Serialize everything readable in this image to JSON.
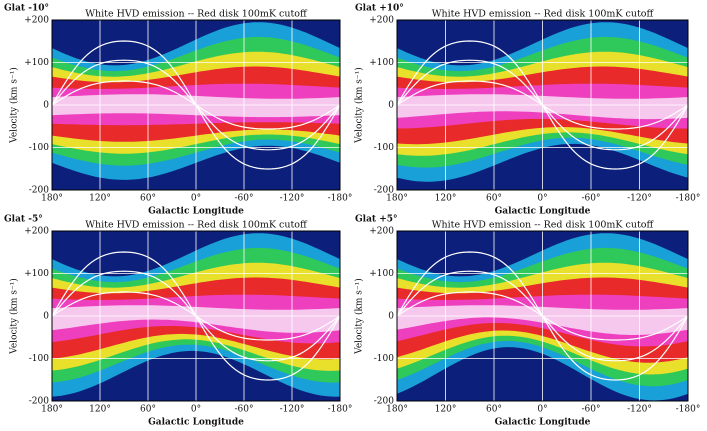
{
  "chart_data": [
    {
      "type": "heatmap",
      "panel_label": "Glat -10°",
      "title": "White HVD emission -- Red disk 100mK cutoff",
      "x_label": "Galactic Longitude",
      "y_label": "Velocity (km s⁻¹)",
      "xlim": [
        180,
        -180
      ],
      "ylim": [
        -200,
        200
      ],
      "xticks": [
        {
          "value": 180,
          "label": "180°"
        },
        {
          "value": 120,
          "label": "120°"
        },
        {
          "value": 60,
          "label": "60°"
        },
        {
          "value": 0,
          "label": "0°"
        },
        {
          "value": -60,
          "label": "-60°"
        },
        {
          "value": -120,
          "label": "-120°"
        },
        {
          "value": -180,
          "label": "-180°"
        }
      ],
      "yticks": [
        {
          "value": -200,
          "label": "-200"
        },
        {
          "value": -100,
          "label": "-100"
        },
        0,
        {
          "value": 100,
          "label": "+100"
        },
        {
          "value": 200,
          "label": "+200"
        }
      ]
    },
    {
      "type": "heatmap",
      "panel_label": "Glat +10°",
      "title": "White HVD emission -- Red disk 100mK cutoff",
      "x_label": "Galactic Longitude",
      "y_label": "Velocity (km s⁻¹)",
      "xlim": [
        180,
        -180
      ],
      "ylim": [
        -200,
        200
      ],
      "xticks": [
        {
          "value": 180,
          "label": "180°"
        },
        {
          "value": 120,
          "label": "120°"
        },
        {
          "value": 60,
          "label": "60°"
        },
        {
          "value": 0,
          "label": "0°"
        },
        {
          "value": -60,
          "label": "-60°"
        },
        {
          "value": -120,
          "label": "-120°"
        },
        {
          "value": -180,
          "label": "-180°"
        }
      ],
      "yticks": [
        {
          "value": -200,
          "label": "-200"
        },
        {
          "value": -100,
          "label": "-100"
        },
        0,
        {
          "value": 100,
          "label": "+100"
        },
        {
          "value": 200,
          "label": "+200"
        }
      ]
    },
    {
      "type": "heatmap",
      "panel_label": "Glat -5°",
      "title": "White HVD emission -- Red disk 100mK cutoff",
      "x_label": "Galactic Longitude",
      "y_label": "Velocity (km s⁻¹)",
      "xlim": [
        180,
        -180
      ],
      "ylim": [
        -200,
        200
      ],
      "xticks": [
        {
          "value": 180,
          "label": "180°"
        },
        {
          "value": 120,
          "label": "120°"
        },
        {
          "value": 60,
          "label": "60°"
        },
        {
          "value": 0,
          "label": "0°"
        },
        {
          "value": -60,
          "label": "-60°"
        },
        {
          "value": -120,
          "label": "-120°"
        },
        {
          "value": -180,
          "label": "-180°"
        }
      ],
      "yticks": [
        {
          "value": -200,
          "label": "-200"
        },
        {
          "value": -100,
          "label": "-100"
        },
        0,
        {
          "value": 100,
          "label": "+100"
        },
        {
          "value": 200,
          "label": "+200"
        }
      ]
    },
    {
      "type": "heatmap",
      "panel_label": "Glat +5°",
      "title": "White HVD emission -- Red disk 100mK cutoff",
      "x_label": "Galactic Longitude",
      "y_label": "Velocity (km s⁻¹)",
      "xlim": [
        180,
        -180
      ],
      "ylim": [
        -200,
        200
      ],
      "xticks": [
        {
          "value": 180,
          "label": "180°"
        },
        {
          "value": 120,
          "label": "120°"
        },
        {
          "value": 60,
          "label": "60°"
        },
        {
          "value": 0,
          "label": "0°"
        },
        {
          "value": -60,
          "label": "-60°"
        },
        {
          "value": -120,
          "label": "-120°"
        },
        {
          "value": -180,
          "label": "-180°"
        }
      ],
      "yticks": [
        {
          "value": -200,
          "label": "-200"
        },
        {
          "value": -100,
          "label": "-100"
        },
        0,
        {
          "value": 100,
          "label": "+100"
        },
        {
          "value": 200,
          "label": "+200"
        }
      ]
    }
  ]
}
